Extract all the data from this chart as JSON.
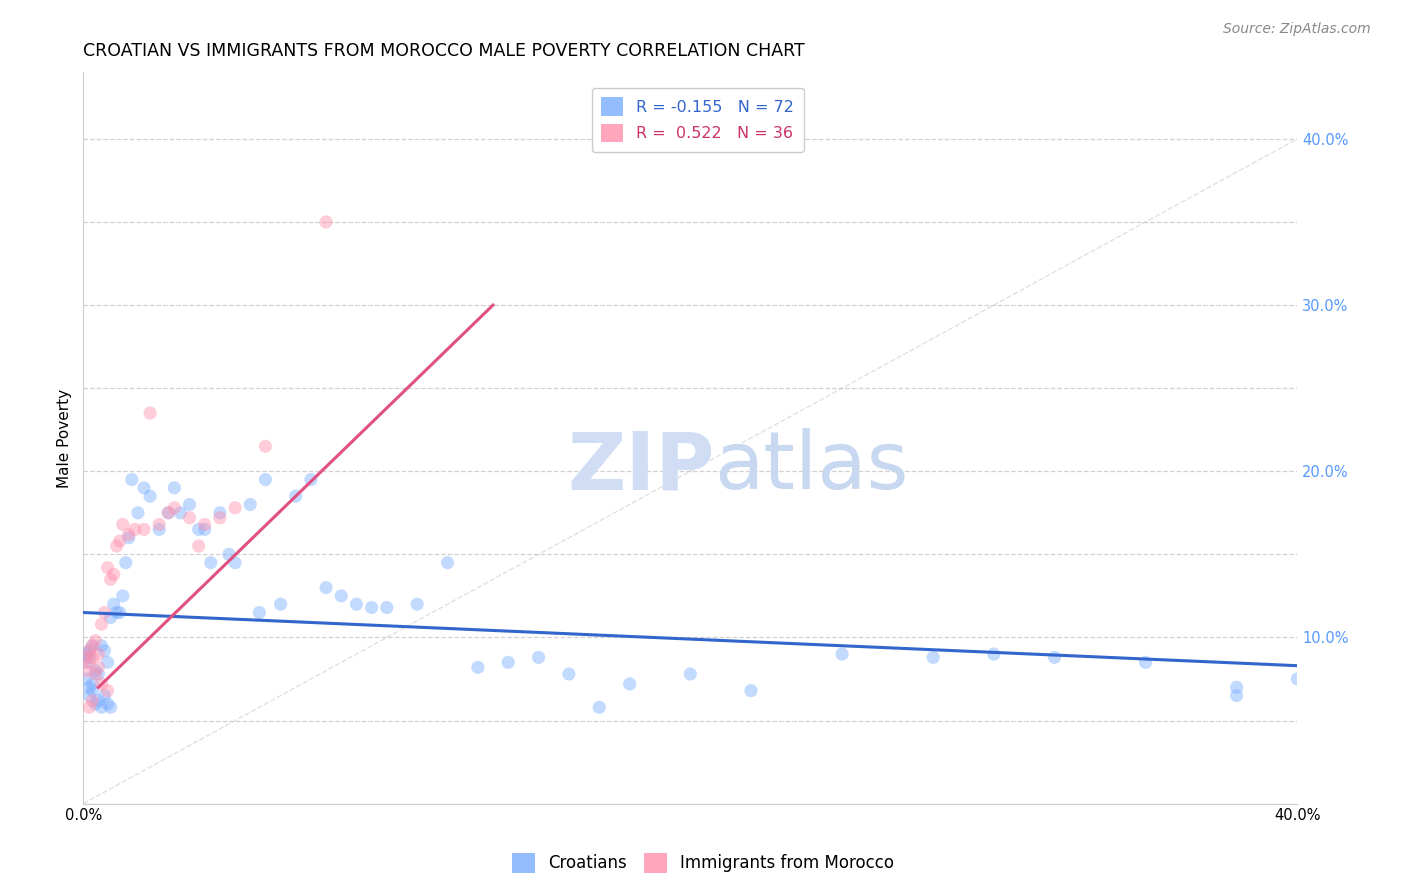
{
  "title": "CROATIAN VS IMMIGRANTS FROM MOROCCO MALE POVERTY CORRELATION CHART",
  "source": "Source: ZipAtlas.com",
  "ylabel": "Male Poverty",
  "watermark_zip": "ZIP",
  "watermark_atlas": "atlas",
  "xlim": [
    0.0,
    0.4
  ],
  "ylim": [
    0.0,
    0.44
  ],
  "grid_color": "#cccccc",
  "croatians_color": "#7aadff",
  "morocco_color": "#ff8fab",
  "blue_line_color": "#3366cc",
  "pink_line_color": "#e05080",
  "diagonal_color": "#cccccc",
  "background_color": "#ffffff",
  "title_fontsize": 12.5,
  "axis_fontsize": 11,
  "tick_fontsize": 10.5,
  "legend_fontsize": 11.5,
  "source_fontsize": 10,
  "marker_size": 90,
  "marker_alpha": 0.45,
  "line_width": 2.2,
  "blue_line_x0": 0.0,
  "blue_line_x1": 0.4,
  "blue_line_y0": 0.115,
  "blue_line_y1": 0.083,
  "pink_line_x0": 0.005,
  "pink_line_x1": 0.135,
  "pink_line_y0": 0.07,
  "pink_line_y1": 0.3,
  "croatians_x": [
    0.001,
    0.001,
    0.001,
    0.002,
    0.002,
    0.002,
    0.002,
    0.003,
    0.003,
    0.003,
    0.004,
    0.004,
    0.005,
    0.005,
    0.006,
    0.006,
    0.007,
    0.007,
    0.008,
    0.008,
    0.009,
    0.009,
    0.01,
    0.011,
    0.012,
    0.013,
    0.014,
    0.015,
    0.016,
    0.018,
    0.02,
    0.022,
    0.025,
    0.028,
    0.03,
    0.032,
    0.035,
    0.038,
    0.04,
    0.042,
    0.045,
    0.048,
    0.05,
    0.055,
    0.058,
    0.06,
    0.065,
    0.07,
    0.075,
    0.08,
    0.085,
    0.09,
    0.095,
    0.1,
    0.11,
    0.12,
    0.13,
    0.14,
    0.15,
    0.16,
    0.17,
    0.18,
    0.2,
    0.22,
    0.25,
    0.28,
    0.3,
    0.32,
    0.35,
    0.38,
    0.38,
    0.4
  ],
  "croatians_y": [
    0.09,
    0.085,
    0.075,
    0.092,
    0.088,
    0.07,
    0.065,
    0.095,
    0.072,
    0.068,
    0.08,
    0.06,
    0.078,
    0.062,
    0.095,
    0.058,
    0.092,
    0.065,
    0.085,
    0.06,
    0.112,
    0.058,
    0.12,
    0.115,
    0.115,
    0.125,
    0.145,
    0.16,
    0.195,
    0.175,
    0.19,
    0.185,
    0.165,
    0.175,
    0.19,
    0.175,
    0.18,
    0.165,
    0.165,
    0.145,
    0.175,
    0.15,
    0.145,
    0.18,
    0.115,
    0.195,
    0.12,
    0.185,
    0.195,
    0.13,
    0.125,
    0.12,
    0.118,
    0.118,
    0.12,
    0.145,
    0.082,
    0.085,
    0.088,
    0.078,
    0.058,
    0.072,
    0.078,
    0.068,
    0.09,
    0.088,
    0.09,
    0.088,
    0.085,
    0.07,
    0.065,
    0.075
  ],
  "morocco_x": [
    0.001,
    0.001,
    0.002,
    0.002,
    0.002,
    0.003,
    0.003,
    0.003,
    0.004,
    0.004,
    0.005,
    0.005,
    0.006,
    0.006,
    0.007,
    0.008,
    0.008,
    0.009,
    0.01,
    0.011,
    0.012,
    0.013,
    0.015,
    0.017,
    0.02,
    0.022,
    0.025,
    0.028,
    0.03,
    0.035,
    0.038,
    0.04,
    0.045,
    0.05,
    0.06,
    0.08
  ],
  "morocco_y": [
    0.088,
    0.08,
    0.092,
    0.085,
    0.058,
    0.095,
    0.088,
    0.062,
    0.098,
    0.078,
    0.09,
    0.082,
    0.108,
    0.072,
    0.115,
    0.142,
    0.068,
    0.135,
    0.138,
    0.155,
    0.158,
    0.168,
    0.162,
    0.165,
    0.165,
    0.235,
    0.168,
    0.175,
    0.178,
    0.172,
    0.155,
    0.168,
    0.172,
    0.178,
    0.215,
    0.35
  ]
}
